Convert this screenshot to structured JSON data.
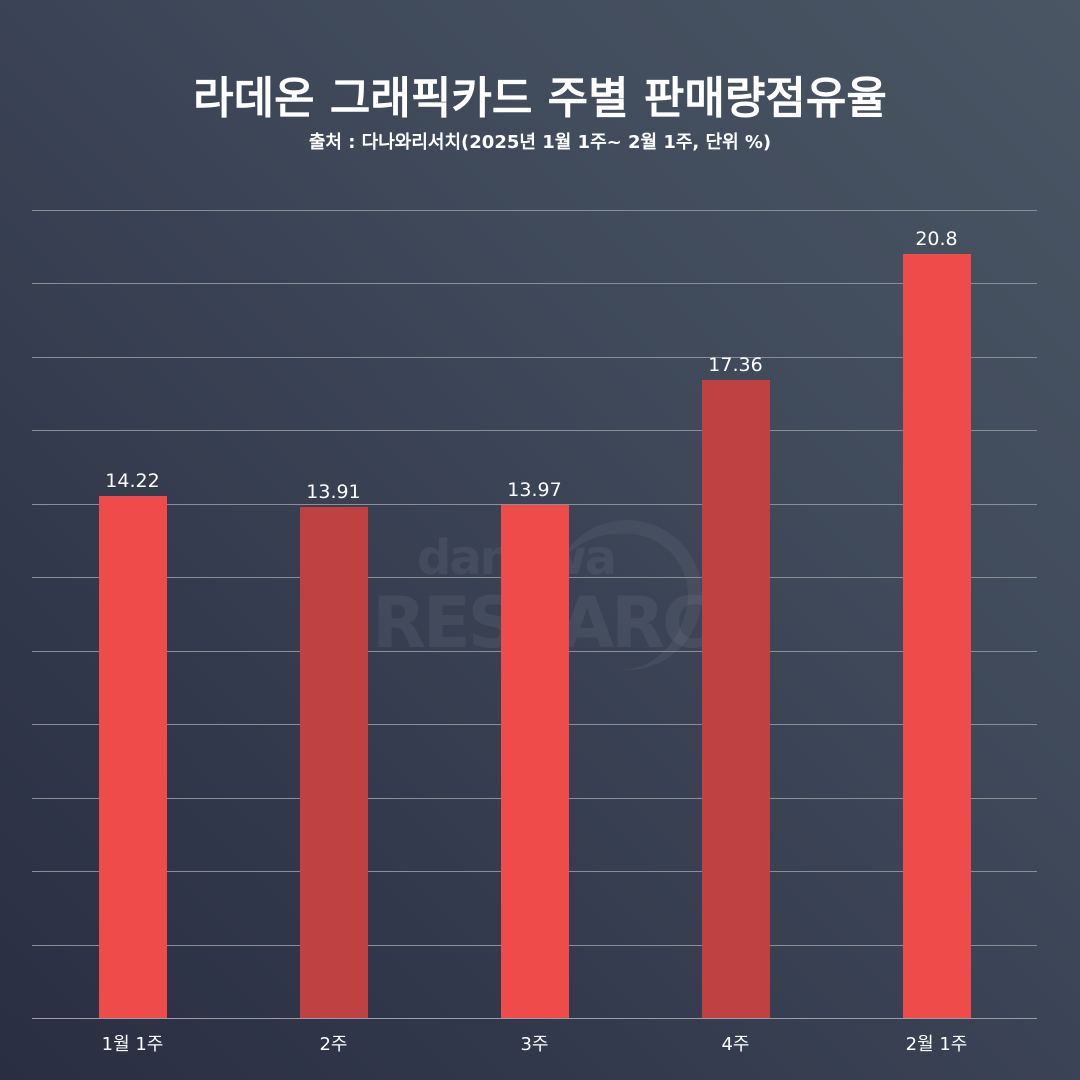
{
  "header": {
    "title": "라데온 그래픽카드 주별 판매량점유율",
    "subtitle": "출처 : 다나와리서치(2025년 1월 1주~ 2월 1주, 단위 %)"
  },
  "watermark": {
    "line1": "danawa",
    "line2": "RESEARCH"
  },
  "colors": {
    "bar_primary": "#ef4b4b",
    "bar_secondary": "#c04141",
    "gridline": "#8a8f96",
    "background_light": "#4a5664",
    "background_dark": "#2a2e42"
  },
  "chart_data": {
    "type": "bar",
    "title": "라데온 그래픽카드 주별 판매량점유율",
    "subtitle": "출처 : 다나와리서치(2025년 1월 1주~ 2월 1주, 단위 %)",
    "categories": [
      "1월 1주",
      "2주",
      "3주",
      "4주",
      "2월 1주"
    ],
    "values": [
      14.22,
      13.91,
      13.97,
      17.36,
      20.8
    ],
    "value_labels": [
      "14.22",
      "13.91",
      "13.97",
      "17.36",
      "20.8"
    ],
    "bar_colors": [
      "#ef4b4b",
      "#c04141",
      "#ef4b4b",
      "#c04141",
      "#ef4b4b"
    ],
    "xlabel": "",
    "ylabel": "",
    "ylim": [
      0,
      22
    ],
    "grid": true,
    "grid_step": 2,
    "legend": "none",
    "y_tick_labels_visible": false
  }
}
